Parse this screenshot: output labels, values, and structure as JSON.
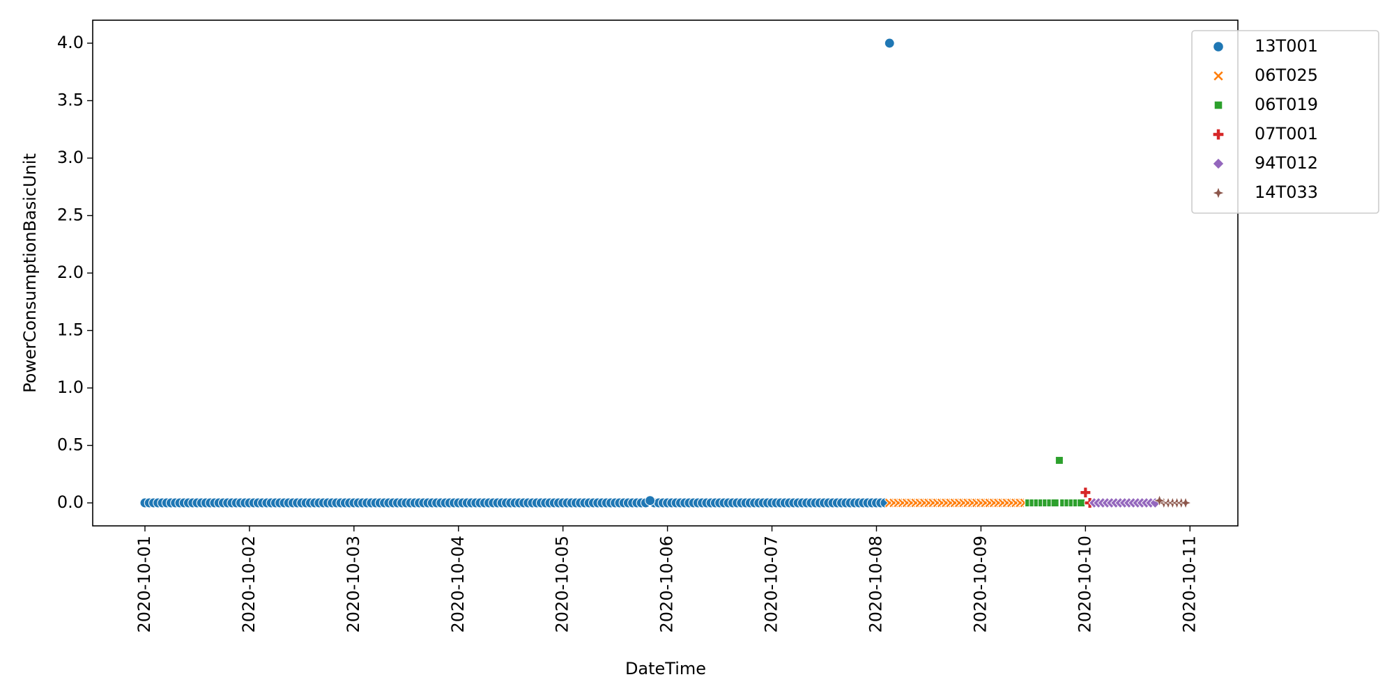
{
  "chart_data": {
    "type": "scatter",
    "title": "",
    "xlabel": "DateTime",
    "ylabel": "PowerConsumptionBasicUnit",
    "x_type": "date",
    "xlim": [
      "2020-09-30T12:00",
      "2020-10-11T11:00"
    ],
    "ylim": [
      -0.2,
      4.2
    ],
    "x_ticks": [
      "2020-10-01",
      "2020-10-02",
      "2020-10-03",
      "2020-10-04",
      "2020-10-05",
      "2020-10-06",
      "2020-10-07",
      "2020-10-08",
      "2020-10-09",
      "2020-10-10",
      "2020-10-11"
    ],
    "y_ticks": [
      "0.0",
      "0.5",
      "1.0",
      "1.5",
      "2.0",
      "2.5",
      "3.0",
      "3.5",
      "4.0"
    ],
    "grid": false,
    "legend_position": "upper right, outside the plot",
    "series": [
      {
        "name": "13T001",
        "marker": "circle",
        "color": "#1f77b4",
        "start": "2020-10-01T00:00",
        "end": "2020-10-08T02:00",
        "interval_hours": 1,
        "baseline": 0.0,
        "outliers": [
          {
            "x": "2020-10-05T20:00",
            "y": 0.02
          },
          {
            "x": "2020-10-08T03:00",
            "y": 4.0
          }
        ]
      },
      {
        "name": "06T025",
        "marker": "x-marker",
        "color": "#ff7f0e",
        "start": "2020-10-08T03:00",
        "end": "2020-10-09T11:00",
        "interval_hours": 1,
        "baseline": 0.0,
        "outliers": []
      },
      {
        "name": "06T019",
        "marker": "square",
        "color": "#2ca02c",
        "start": "2020-10-09T11:00",
        "end": "2020-10-09T23:00",
        "interval_hours": 1,
        "baseline": 0.0,
        "outliers": [
          {
            "x": "2020-10-09T18:00",
            "y": 0.37
          }
        ]
      },
      {
        "name": "07T001",
        "marker": "plus",
        "color": "#d62728",
        "start": "2020-10-10T00:00",
        "end": "2020-10-10T01:00",
        "interval_hours": 1,
        "baseline": 0.0,
        "outliers": [
          {
            "x": "2020-10-10T00:00",
            "y": 0.09
          }
        ]
      },
      {
        "name": "94T012",
        "marker": "diamond",
        "color": "#9467bd",
        "start": "2020-10-10T02:00",
        "end": "2020-10-10T16:00",
        "interval_hours": 1,
        "baseline": 0.0,
        "outliers": []
      },
      {
        "name": "14T033",
        "marker": "thin-diamond-star",
        "color": "#8c564b",
        "start": "2020-10-10T17:00",
        "end": "2020-10-10T23:00",
        "interval_hours": 1,
        "baseline": 0.0,
        "outliers": [
          {
            "x": "2020-10-10T17:00",
            "y": 0.02
          }
        ]
      }
    ]
  }
}
